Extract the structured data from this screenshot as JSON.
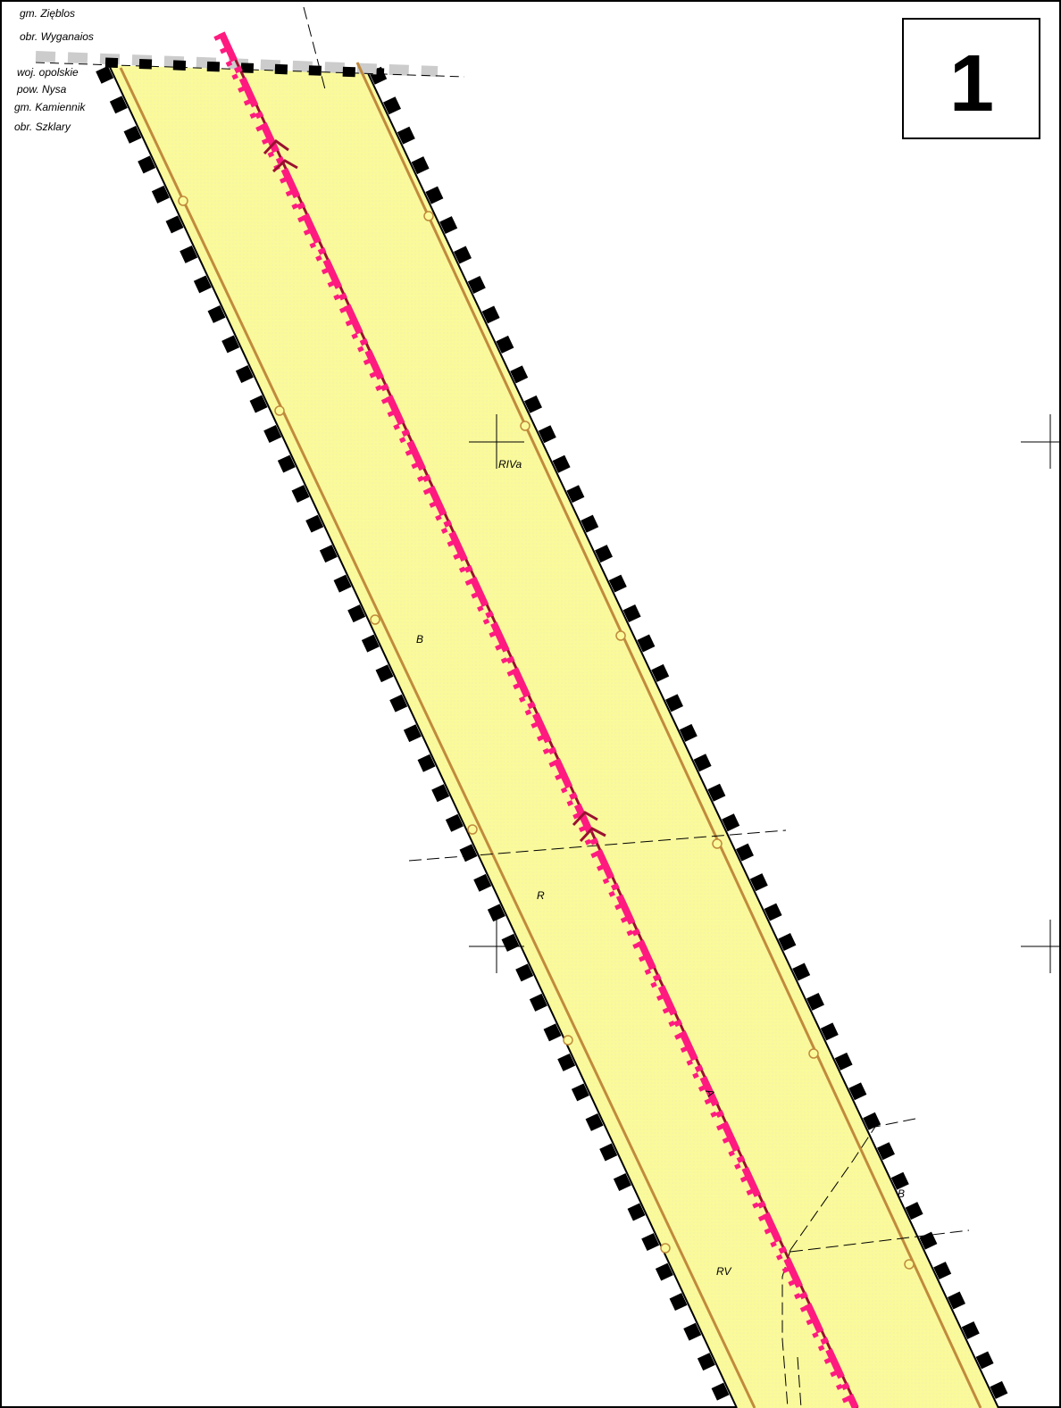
{
  "sheet": {
    "number": "1"
  },
  "admin_labels": {
    "north": [
      "gm. Zięblos",
      "obr. Wyganaios"
    ],
    "south": [
      "woj. opolskie",
      "pow. Nysa",
      "gm. Kamiennik",
      "obr. Szklary"
    ]
  },
  "land_use_labels": {
    "l1": "RIVa",
    "l2": "B",
    "l3": "R",
    "l4": "RV",
    "l5": "B"
  },
  "pipeline_label": "A",
  "colors": {
    "corridor_fill": "#fafa9a",
    "corridor_edge": "#c08a3c",
    "boundary": "#000000",
    "pipeline": "#ff1a80",
    "pipeline_dark": "#9a1030",
    "admin_boundary": "#cccccc"
  }
}
